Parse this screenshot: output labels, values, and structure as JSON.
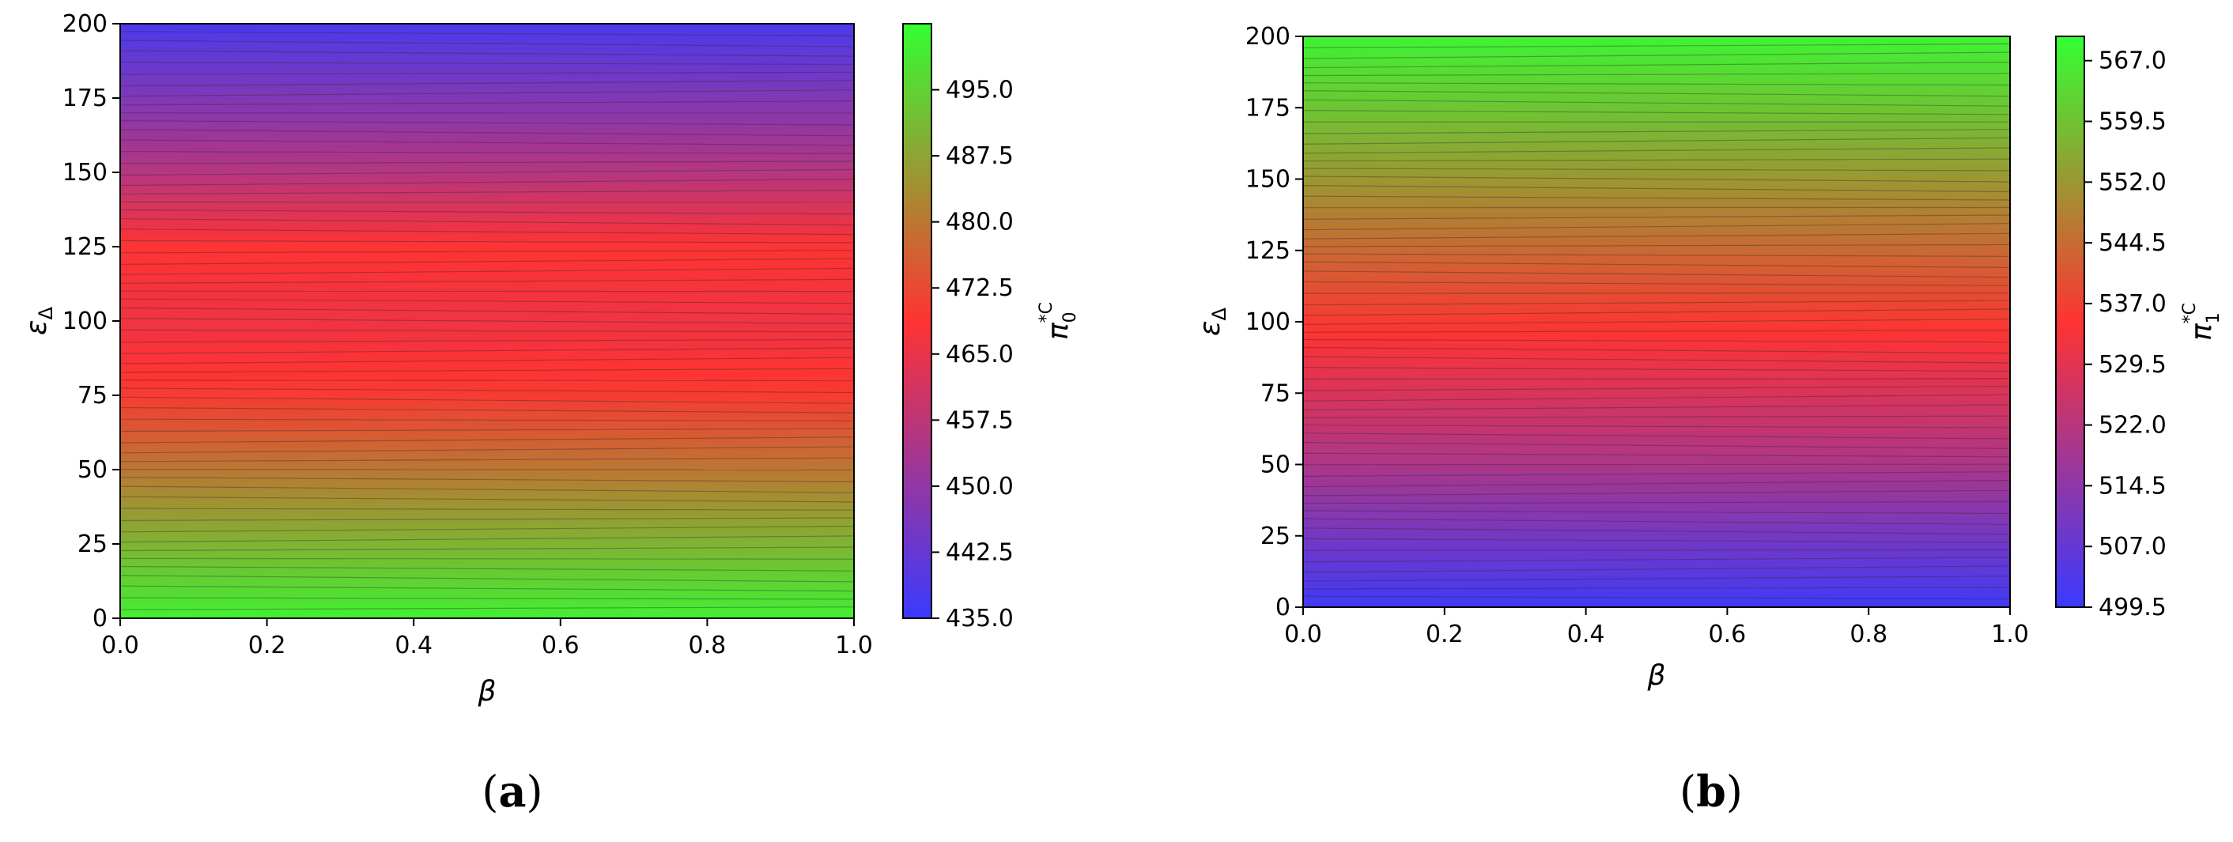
{
  "chart_data": [
    {
      "type": "heatmap",
      "panel_label": "(a)",
      "panel_letter": "a",
      "xlabel": "β",
      "ylabel": "ε_Δ",
      "colorbar_label": "π_0^{*C}",
      "xlim": [
        0.0,
        1.0
      ],
      "ylim": [
        0,
        200
      ],
      "x_ticks": [
        "0.0",
        "0.2",
        "0.4",
        "0.6",
        "0.8",
        "1.0"
      ],
      "y_ticks": [
        "0",
        "25",
        "50",
        "75",
        "100",
        "125",
        "150",
        "175",
        "200"
      ],
      "colorbar_range": [
        435.0,
        502.5
      ],
      "colorbar_ticks": [
        "435.0",
        "442.5",
        "450.0",
        "457.5",
        "465.0",
        "472.5",
        "480.0",
        "487.5",
        "495.0"
      ],
      "colormap": [
        "#3a3aff",
        "#ff3333",
        "#33ff33"
      ],
      "value_profile": {
        "eps": [
          0,
          25,
          50,
          75,
          100,
          125,
          150,
          175,
          200
        ],
        "value": [
          500,
          490,
          480,
          470,
          466,
          469,
          456,
          447,
          438
        ]
      },
      "contour_lines": true
    },
    {
      "type": "heatmap",
      "panel_label": "(b)",
      "panel_letter": "b",
      "xlabel": "β",
      "ylabel": "ε_Δ",
      "colorbar_label": "π_1^{*C}",
      "xlim": [
        0.0,
        1.0
      ],
      "ylim": [
        0,
        200
      ],
      "x_ticks": [
        "0.0",
        "0.2",
        "0.4",
        "0.6",
        "0.8",
        "1.0"
      ],
      "y_ticks": [
        "0",
        "25",
        "50",
        "75",
        "100",
        "125",
        "150",
        "175",
        "200"
      ],
      "colorbar_range": [
        499.5,
        570.0
      ],
      "colorbar_ticks": [
        "499.5",
        "507.0",
        "514.5",
        "522.0",
        "529.5",
        "537.0",
        "544.5",
        "552.0",
        "559.5",
        "567.0"
      ],
      "colormap": [
        "#3a3aff",
        "#ff3333",
        "#33ff33"
      ],
      "value_profile": {
        "eps": [
          0,
          25,
          50,
          75,
          100,
          125,
          150,
          175,
          200
        ],
        "value": [
          501,
          510,
          520,
          528,
          536,
          544,
          552,
          560,
          568
        ]
      },
      "contour_lines": true
    }
  ]
}
